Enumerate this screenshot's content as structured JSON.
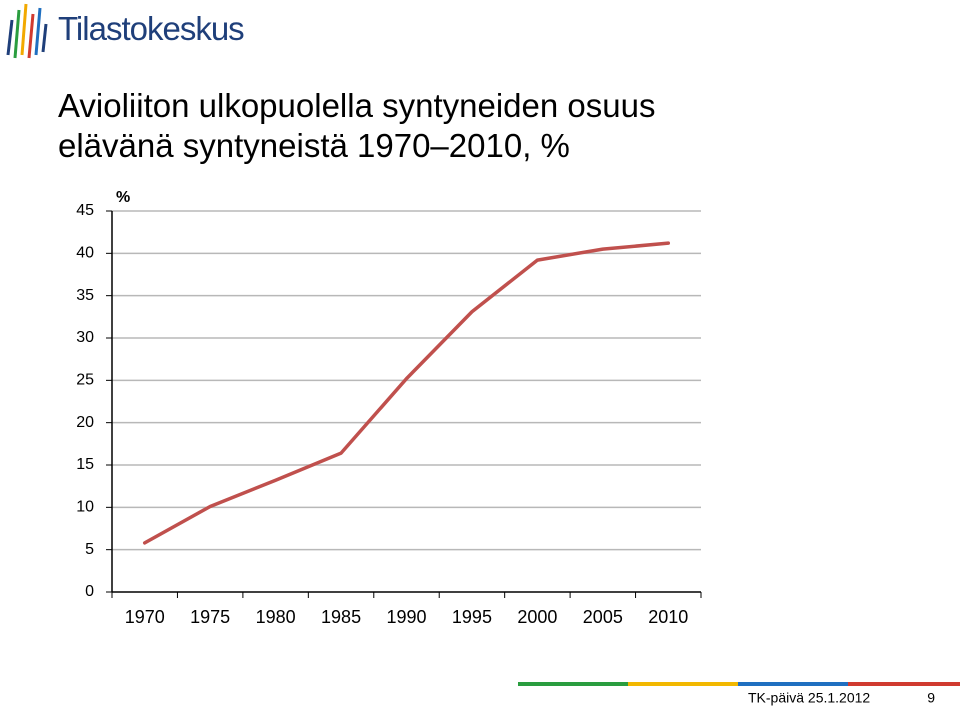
{
  "logo": {
    "text": "Tilastokeskus"
  },
  "chart_data": {
    "type": "line",
    "title": "Avioliiton ulkopuolella syntyneiden osuus elävänä syntyneistä 1970–2010, %",
    "y_label": "%",
    "categories": [
      "1970",
      "1975",
      "1980",
      "1985",
      "1990",
      "1995",
      "2000",
      "2005",
      "2010"
    ],
    "series": [
      {
        "name": "Osuus",
        "color": "#c0504d",
        "values": [
          5.8,
          10.1,
          13.2,
          16.4,
          25.2,
          33.1,
          39.2,
          40.5,
          41.2
        ]
      }
    ],
    "ylim": [
      0,
      45
    ],
    "yticks": [
      0,
      5,
      10,
      15,
      20,
      25,
      30,
      35,
      40,
      45
    ],
    "grid": true
  },
  "footer": {
    "text": "TK-päivä 25.1.2012",
    "page": "9"
  }
}
